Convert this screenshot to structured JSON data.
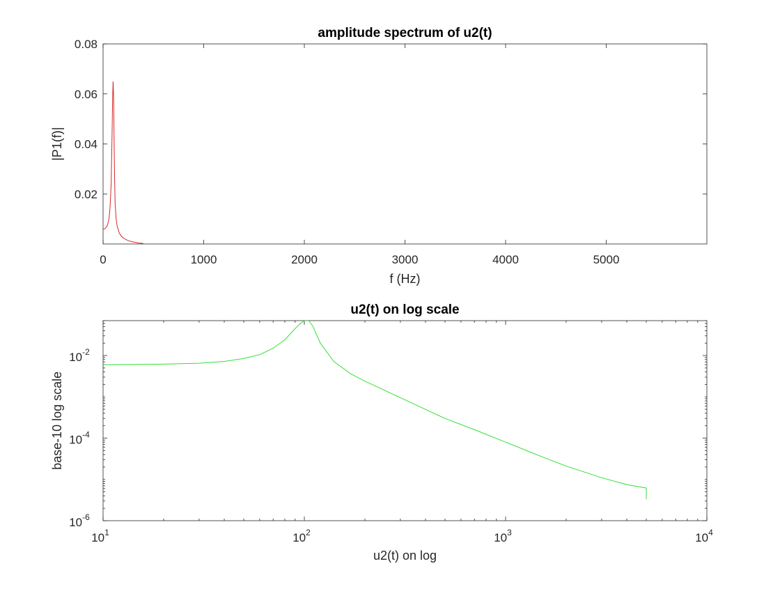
{
  "chart_data": [
    {
      "type": "line",
      "title": "amplitude spectrum of u2(t)",
      "xlabel": "f (Hz)",
      "ylabel": "|P1(f)|",
      "xlim": [
        0,
        6000
      ],
      "ylim": [
        0,
        0.08
      ],
      "x_ticks": [
        0,
        1000,
        2000,
        3000,
        4000,
        5000
      ],
      "x_tick_labels": [
        "0",
        "1000",
        "2000",
        "3000",
        "4000",
        "5000"
      ],
      "y_ticks": [
        0.02,
        0.04,
        0.06,
        0.08
      ],
      "y_tick_labels": [
        "0.02",
        "0.04",
        "0.06",
        "0.08"
      ],
      "grid": false,
      "series_color": "#d62728",
      "series": [
        {
          "x": [
            0,
            10,
            20,
            30,
            40,
            50,
            60,
            70,
            80,
            90,
            95,
            100,
            105,
            110,
            115,
            120,
            130,
            140,
            160,
            180,
            200,
            250,
            300,
            350,
            400
          ],
          "values": [
            0.006,
            0.006,
            0.0062,
            0.0066,
            0.0072,
            0.0085,
            0.0105,
            0.015,
            0.024,
            0.045,
            0.058,
            0.065,
            0.058,
            0.04,
            0.026,
            0.016,
            0.01,
            0.0072,
            0.0045,
            0.0032,
            0.0024,
            0.0013,
            0.0008,
            0.0004,
            0.0002
          ]
        }
      ]
    },
    {
      "type": "line",
      "title": "u2(t) on log scale",
      "xlabel": "u2(t) on log",
      "ylabel": "base-10 log scale",
      "xscale": "log",
      "yscale": "log",
      "xlim": [
        10,
        10000
      ],
      "ylim": [
        1e-06,
        0.07
      ],
      "x_ticks": [
        10,
        100,
        1000,
        10000
      ],
      "x_tick_base": [
        "10",
        "10",
        "10",
        "10"
      ],
      "x_tick_exp": [
        "1",
        "2",
        "3",
        "4"
      ],
      "y_ticks": [
        1e-06,
        0.0001,
        0.01
      ],
      "y_tick_base": [
        "10",
        "10",
        "10"
      ],
      "y_tick_exp": [
        "-6",
        "-4",
        "-2"
      ],
      "grid": false,
      "series_color": "#33e033",
      "series": [
        {
          "x": [
            10,
            15,
            20,
            30,
            40,
            50,
            60,
            70,
            80,
            90,
            95,
            100,
            105,
            110,
            115,
            120,
            140,
            170,
            200,
            300,
            500,
            700,
            1000,
            1500,
            2000,
            3000,
            4000,
            5000,
            5000
          ],
          "values": [
            0.006,
            0.0061,
            0.0062,
            0.0065,
            0.0072,
            0.0085,
            0.0105,
            0.015,
            0.024,
            0.045,
            0.058,
            0.07,
            0.07,
            0.052,
            0.032,
            0.02,
            0.0072,
            0.0036,
            0.0024,
            0.00095,
            0.0003,
            0.00016,
            8e-05,
            3.6e-05,
            2.1e-05,
            1.1e-05,
            7.5e-06,
            6.2e-06,
            3.3e-06
          ]
        }
      ]
    }
  ]
}
